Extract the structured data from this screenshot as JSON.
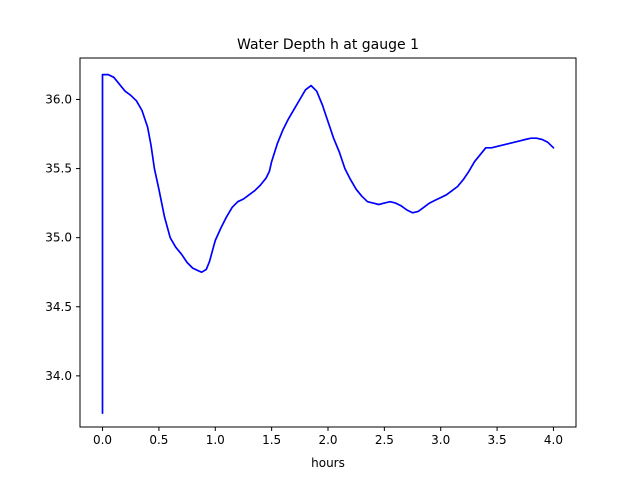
{
  "chart_data": {
    "type": "line",
    "title": "Water Depth h at gauge 1",
    "xlabel": "hours",
    "ylabel": "",
    "xlim": [
      -0.2,
      4.2
    ],
    "ylim": [
      33.63,
      36.3
    ],
    "xticks": [
      0.0,
      0.5,
      1.0,
      1.5,
      2.0,
      2.5,
      3.0,
      3.5,
      4.0
    ],
    "xtick_labels": [
      "0.0",
      "0.5",
      "1.0",
      "1.5",
      "2.0",
      "2.5",
      "3.0",
      "3.5",
      "4.0"
    ],
    "yticks": [
      34.0,
      34.5,
      35.0,
      35.5,
      36.0
    ],
    "ytick_labels": [
      "34.0",
      "34.5",
      "35.0",
      "35.5",
      "36.0"
    ],
    "grid": false,
    "series": [
      {
        "color": "#0000ff",
        "x": [
          0.0,
          0.0,
          0.01,
          0.05,
          0.1,
          0.15,
          0.2,
          0.25,
          0.3,
          0.35,
          0.4,
          0.43,
          0.46,
          0.5,
          0.55,
          0.6,
          0.65,
          0.7,
          0.75,
          0.8,
          0.85,
          0.88,
          0.92,
          0.95,
          0.98,
          1.0,
          1.05,
          1.1,
          1.15,
          1.2,
          1.25,
          1.3,
          1.35,
          1.4,
          1.45,
          1.48,
          1.5,
          1.55,
          1.6,
          1.65,
          1.7,
          1.75,
          1.8,
          1.85,
          1.9,
          1.95,
          2.0,
          2.05,
          2.1,
          2.15,
          2.2,
          2.25,
          2.3,
          2.35,
          2.4,
          2.45,
          2.5,
          2.55,
          2.6,
          2.65,
          2.7,
          2.75,
          2.8,
          2.85,
          2.9,
          2.95,
          3.0,
          3.05,
          3.1,
          3.15,
          3.2,
          3.25,
          3.3,
          3.35,
          3.4,
          3.45,
          3.5,
          3.55,
          3.6,
          3.65,
          3.7,
          3.75,
          3.8,
          3.85,
          3.9,
          3.95,
          4.0
        ],
        "y": [
          33.73,
          36.18,
          36.18,
          36.18,
          36.16,
          36.11,
          36.06,
          36.03,
          35.99,
          35.92,
          35.8,
          35.67,
          35.5,
          35.35,
          35.15,
          35.0,
          34.93,
          34.88,
          34.82,
          34.78,
          34.76,
          34.75,
          34.77,
          34.83,
          34.92,
          34.98,
          35.07,
          35.15,
          35.22,
          35.26,
          35.28,
          35.31,
          35.34,
          35.38,
          35.43,
          35.48,
          35.55,
          35.68,
          35.78,
          35.86,
          35.93,
          36.0,
          36.07,
          36.1,
          36.06,
          35.96,
          35.84,
          35.72,
          35.62,
          35.5,
          35.42,
          35.35,
          35.3,
          35.26,
          35.25,
          35.24,
          35.25,
          35.26,
          35.25,
          35.23,
          35.2,
          35.18,
          35.19,
          35.22,
          35.25,
          35.27,
          35.29,
          35.31,
          35.34,
          35.37,
          35.42,
          35.48,
          35.55,
          35.6,
          35.65,
          35.65,
          35.66,
          35.67,
          35.68,
          35.69,
          35.7,
          35.71,
          35.72,
          35.72,
          35.71,
          35.69,
          35.65
        ]
      }
    ]
  }
}
